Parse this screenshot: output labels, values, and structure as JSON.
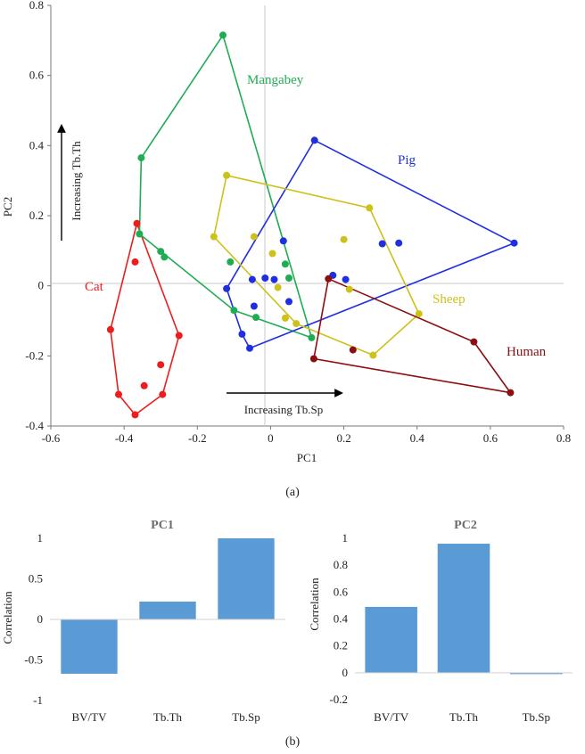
{
  "captions": {
    "a": "(a)",
    "b": "(b)"
  },
  "chart_data": [
    {
      "type": "scatter",
      "title": "",
      "xlabel": "PC1",
      "ylabel": "PC2",
      "xlim": [
        -0.6,
        0.8
      ],
      "ylim": [
        -0.4,
        0.8
      ],
      "x_ticks": [
        -0.6,
        -0.4,
        -0.2,
        0,
        0.2,
        0.4,
        0.6,
        0.8
      ],
      "y_ticks": [
        -0.4,
        -0.2,
        0,
        0.2,
        0.4,
        0.6,
        0.8
      ],
      "x_tick_labels": [
        "-0.6",
        "-0.4",
        "-0.2",
        "0",
        "0.2",
        "0.4",
        "0.6",
        "0.8"
      ],
      "y_tick_labels": [
        "-0.4",
        "-0.2",
        "0",
        "0.2",
        "0.4",
        "0.6",
        "0.8"
      ],
      "annotations": {
        "vertical_arrow": "Increasing Tb.Th",
        "horizontal_arrow": "Increasing Tb.Sp"
      },
      "series": [
        {
          "name": "Cat",
          "color": "#ee1c1c",
          "hull": [
            [
              -0.365,
              0.178
            ],
            [
              -0.25,
              -0.142
            ],
            [
              -0.295,
              -0.31
            ],
            [
              -0.37,
              -0.368
            ],
            [
              -0.415,
              -0.31
            ],
            [
              -0.437,
              -0.125
            ]
          ],
          "points": [
            [
              -0.365,
              0.178
            ],
            [
              -0.37,
              0.068
            ],
            [
              -0.25,
              -0.142
            ],
            [
              -0.3,
              -0.225
            ],
            [
              -0.345,
              -0.285
            ],
            [
              -0.295,
              -0.31
            ],
            [
              -0.37,
              -0.368
            ],
            [
              -0.415,
              -0.31
            ],
            [
              -0.437,
              -0.125
            ]
          ]
        },
        {
          "name": "Mangabey",
          "color": "#1fad53",
          "hull": [
            [
              -0.13,
              0.715
            ],
            [
              0.112,
              -0.148
            ],
            [
              -0.1,
              -0.07
            ],
            [
              -0.358,
              0.148
            ],
            [
              -0.353,
              0.365
            ]
          ],
          "points": [
            [
              -0.13,
              0.715
            ],
            [
              -0.353,
              0.365
            ],
            [
              -0.358,
              0.148
            ],
            [
              -0.3,
              0.098
            ],
            [
              -0.29,
              0.082
            ],
            [
              -0.11,
              0.068
            ],
            [
              -0.1,
              -0.07
            ],
            [
              -0.04,
              -0.09
            ],
            [
              0.04,
              0.062
            ],
            [
              0.05,
              0.022
            ],
            [
              0.112,
              -0.148
            ]
          ]
        },
        {
          "name": "Pig",
          "color": "#1f2ee0",
          "hull": [
            [
              0.12,
              0.415
            ],
            [
              0.665,
              0.122
            ],
            [
              -0.057,
              -0.178
            ],
            [
              -0.078,
              -0.138
            ],
            [
              -0.12,
              -0.008
            ]
          ],
          "points": [
            [
              0.12,
              0.415
            ],
            [
              0.665,
              0.122
            ],
            [
              -0.057,
              -0.178
            ],
            [
              -0.078,
              -0.138
            ],
            [
              -0.12,
              -0.008
            ],
            [
              0.035,
              0.128
            ],
            [
              -0.05,
              0.018
            ],
            [
              -0.015,
              0.022
            ],
            [
              -0.045,
              -0.058
            ],
            [
              0.05,
              -0.045
            ],
            [
              0.17,
              0.03
            ],
            [
              0.205,
              0.018
            ],
            [
              0.305,
              0.12
            ],
            [
              0.35,
              0.122
            ],
            [
              0.01,
              0.018
            ]
          ]
        },
        {
          "name": "Sheep",
          "color": "#ccc21a",
          "hull": [
            [
              -0.12,
              0.315
            ],
            [
              0.27,
              0.222
            ],
            [
              0.405,
              -0.08
            ],
            [
              0.28,
              -0.198
            ],
            [
              0.07,
              -0.108
            ],
            [
              -0.155,
              0.14
            ]
          ],
          "points": [
            [
              -0.12,
              0.315
            ],
            [
              0.27,
              0.222
            ],
            [
              0.405,
              -0.08
            ],
            [
              0.28,
              -0.198
            ],
            [
              0.07,
              -0.108
            ],
            [
              -0.155,
              0.14
            ],
            [
              -0.045,
              0.14
            ],
            [
              0.005,
              0.092
            ],
            [
              0.2,
              0.132
            ],
            [
              0.02,
              -0.005
            ],
            [
              0.215,
              -0.01
            ],
            [
              0.04,
              -0.092
            ]
          ]
        },
        {
          "name": "Human",
          "color": "#8b0e10",
          "hull": [
            [
              0.158,
              0.02
            ],
            [
              0.555,
              -0.16
            ],
            [
              0.655,
              -0.305
            ],
            [
              0.118,
              -0.208
            ]
          ],
          "points": [
            [
              0.158,
              0.02
            ],
            [
              0.555,
              -0.16
            ],
            [
              0.655,
              -0.305
            ],
            [
              0.118,
              -0.208
            ],
            [
              0.225,
              -0.183
            ]
          ]
        }
      ]
    },
    {
      "type": "bar",
      "title": "PC1",
      "ylabel": "Correlation",
      "categories": [
        "BV/TV",
        "Tb.Th",
        "Tb.Sp"
      ],
      "values": [
        -0.67,
        0.22,
        1.0
      ],
      "ylim": [
        -1,
        1
      ],
      "y_ticks": [
        -1,
        -0.5,
        0,
        0.5,
        1
      ],
      "y_tick_labels": [
        "-1",
        "-0.5",
        "0",
        "0.5",
        "1"
      ],
      "color": "#5b9bd5"
    },
    {
      "type": "bar",
      "title": "PC2",
      "ylabel": "Correlation",
      "categories": [
        "BV/TV",
        "Tb.Th",
        "Tb.Sp"
      ],
      "values": [
        0.49,
        0.96,
        -0.01
      ],
      "ylim": [
        -0.2,
        1
      ],
      "y_ticks": [
        -0.2,
        0,
        0.2,
        0.4,
        0.6,
        0.8,
        1
      ],
      "y_tick_labels": [
        "-0.2",
        "0",
        "0.2",
        "0.4",
        "0.6",
        "0.8",
        "1"
      ],
      "color": "#5b9bd5"
    }
  ]
}
